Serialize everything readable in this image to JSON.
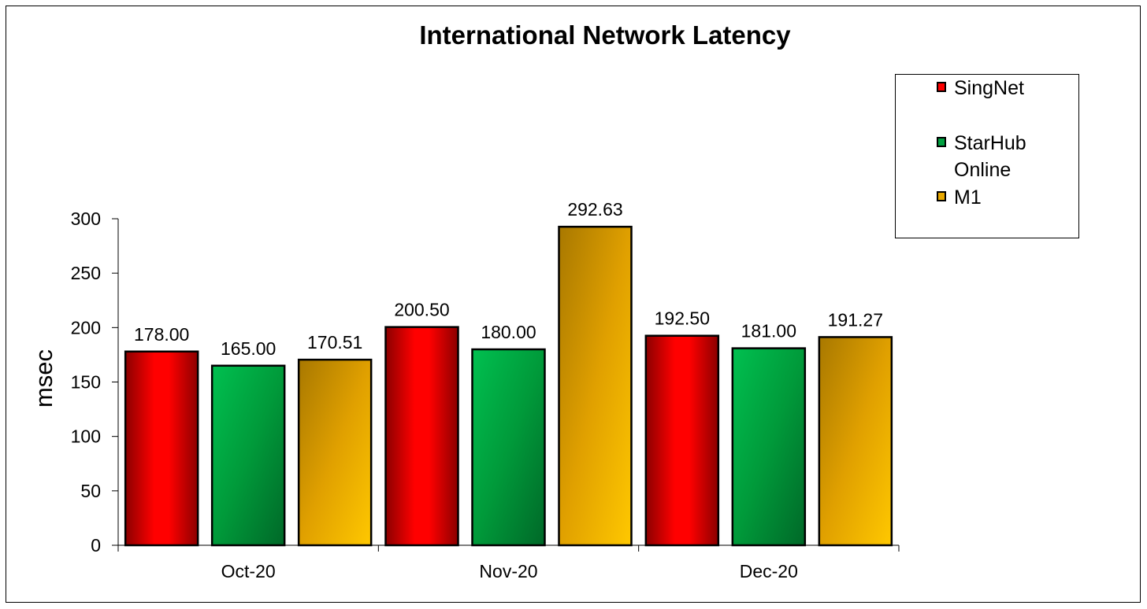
{
  "chart_data": {
    "type": "bar",
    "title": "International Network Latency",
    "xlabel": "",
    "ylabel": "msec",
    "ylim": [
      0,
      300
    ],
    "yticks": [
      0,
      50,
      100,
      150,
      200,
      250,
      300
    ],
    "categories": [
      "Oct-20",
      "Nov-20",
      "Dec-20"
    ],
    "series": [
      {
        "name": "SingNet",
        "values": [
          178.0,
          200.5,
          192.5
        ],
        "labels": [
          "178.00",
          "200.50",
          "192.50"
        ],
        "color": "#ff0000",
        "gradient": [
          "#8b0000",
          "#ff0000",
          "#ff0000",
          "#8b0000"
        ]
      },
      {
        "name": "StarHub Online",
        "values": [
          165.0,
          180.0,
          181.0
        ],
        "labels": [
          "165.00",
          "180.00",
          "181.00"
        ],
        "color": "#00a040",
        "gradient": [
          "#00c050",
          "#009a3a",
          "#006828"
        ]
      },
      {
        "name": "M1",
        "values": [
          170.51,
          292.63,
          191.27
        ],
        "labels": [
          "170.51",
          "292.63",
          "191.27"
        ],
        "color": "#e8a800",
        "gradient": [
          "#a87800",
          "#e0a000",
          "#ffc800"
        ]
      }
    ],
    "legend_position": "top-right",
    "grid": false
  }
}
